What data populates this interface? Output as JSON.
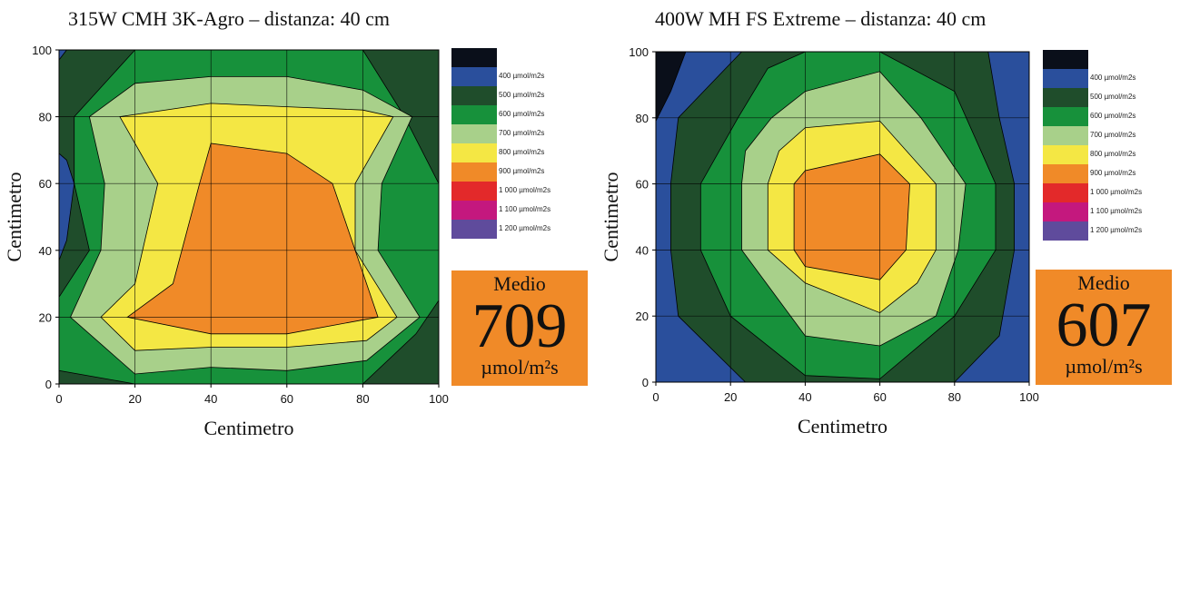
{
  "chart_data": [
    {
      "type": "heatmap",
      "title": "315W CMH 3K-Agro – distanza: 40 cm",
      "xlabel": "Centimetro",
      "ylabel": "Centimetro",
      "xlim": [
        0,
        100
      ],
      "ylim": [
        0,
        100
      ],
      "xticks": [
        "0",
        "20",
        "40",
        "60",
        "80",
        "100"
      ],
      "yticks": [
        "0",
        "20",
        "40",
        "60",
        "80",
        "100"
      ],
      "grid": true,
      "legend_placement": "right",
      "average": {
        "label": "Medio",
        "value": "709",
        "unit": "µmol/m²s"
      },
      "levels": [
        {
          "label": "",
          "color": "#0a0f1a"
        },
        {
          "label": "400 µmol/m2s",
          "color": "#2a4f9c"
        },
        {
          "label": "500 µmol/m2s",
          "color": "#1f4d2b"
        },
        {
          "label": "600 µmol/m2s",
          "color": "#17913b"
        },
        {
          "label": "700 µmol/m2s",
          "color": "#a8d08a"
        },
        {
          "label": "800 µmol/m2s",
          "color": "#f4e744"
        },
        {
          "label": "900 µmol/m2s",
          "color": "#f08a28"
        },
        {
          "label": "1 000 µmol/m2s",
          "color": "#e3292a"
        },
        {
          "label": "1 100 µmol/m2s",
          "color": "#c4187e"
        },
        {
          "label": "1 200 µmol/m2s",
          "color": "#5f4b9c"
        }
      ],
      "regions": [
        {
          "level": 2,
          "points": [
            [
              0,
              0
            ],
            [
              100,
              0
            ],
            [
              100,
              100
            ],
            [
              0,
              100
            ]
          ]
        },
        {
          "level": 1,
          "points": [
            [
              0,
              69
            ],
            [
              2,
              67
            ],
            [
              4,
              60
            ],
            [
              2,
              43
            ],
            [
              0,
              37
            ]
          ]
        },
        {
          "level": 1,
          "points": [
            [
              0,
              97
            ],
            [
              2,
              100
            ],
            [
              0,
              100
            ]
          ]
        },
        {
          "level": 3,
          "points": [
            [
              0,
              26
            ],
            [
              8,
              40
            ],
            [
              4,
              60
            ],
            [
              4,
              80
            ],
            [
              20,
              100
            ],
            [
              60,
              100
            ],
            [
              80,
              100
            ],
            [
              91,
              80
            ],
            [
              100,
              60
            ],
            [
              100,
              25
            ],
            [
              94,
              15
            ],
            [
              80,
              0
            ],
            [
              20,
              0
            ],
            [
              0,
              4
            ]
          ]
        },
        {
          "level": 4,
          "points": [
            [
              3,
              20
            ],
            [
              11,
              40
            ],
            [
              12,
              60
            ],
            [
              8,
              80
            ],
            [
              20,
              90
            ],
            [
              40,
              92
            ],
            [
              60,
              92
            ],
            [
              80,
              88
            ],
            [
              93,
              80
            ],
            [
              85,
              60
            ],
            [
              84,
              40
            ],
            [
              95,
              20
            ],
            [
              81,
              7
            ],
            [
              60,
              4
            ],
            [
              40,
              5
            ],
            [
              20,
              3
            ]
          ]
        },
        {
          "level": 5,
          "points": [
            [
              11,
              20
            ],
            [
              20,
              30
            ],
            [
              26,
              60
            ],
            [
              16,
              80
            ],
            [
              40,
              84
            ],
            [
              60,
              83
            ],
            [
              80,
              82
            ],
            [
              88,
              80
            ],
            [
              78,
              60
            ],
            [
              78,
              40
            ],
            [
              89,
              20
            ],
            [
              81,
              13
            ],
            [
              60,
              11
            ],
            [
              40,
              11
            ],
            [
              20,
              10
            ]
          ]
        },
        {
          "level": 6,
          "points": [
            [
              18,
              20
            ],
            [
              30,
              30
            ],
            [
              37,
              60
            ],
            [
              40,
              72
            ],
            [
              60,
              69
            ],
            [
              72,
              60
            ],
            [
              78,
              40
            ],
            [
              84,
              20
            ],
            [
              60,
              15
            ],
            [
              40,
              15
            ]
          ]
        }
      ]
    },
    {
      "type": "heatmap",
      "title": "400W MH FS Extreme – distanza: 40 cm",
      "xlabel": "Centimetro",
      "ylabel": "Centimetro",
      "xlim": [
        0,
        100
      ],
      "ylim": [
        0,
        100
      ],
      "xticks": [
        "0",
        "20",
        "40",
        "60",
        "80",
        "100"
      ],
      "yticks": [
        "0",
        "20",
        "40",
        "60",
        "80",
        "100"
      ],
      "grid": true,
      "legend_placement": "right",
      "average": {
        "label": "Medio",
        "value": "607",
        "unit": "µmol/m²s"
      },
      "levels": [
        {
          "label": "",
          "color": "#0a0f1a"
        },
        {
          "label": "400 µmol/m2s",
          "color": "#2a4f9c"
        },
        {
          "label": "500 µmol/m2s",
          "color": "#1f4d2b"
        },
        {
          "label": "600 µmol/m2s",
          "color": "#17913b"
        },
        {
          "label": "700 µmol/m2s",
          "color": "#a8d08a"
        },
        {
          "label": "800 µmol/m2s",
          "color": "#f4e744"
        },
        {
          "label": "900 µmol/m2s",
          "color": "#f08a28"
        },
        {
          "label": "1 000 µmol/m2s",
          "color": "#e3292a"
        },
        {
          "label": "1 100 µmol/m2s",
          "color": "#c4187e"
        },
        {
          "label": "1 200 µmol/m2s",
          "color": "#5f4b9c"
        }
      ],
      "regions": [
        {
          "level": 1,
          "points": [
            [
              0,
              0
            ],
            [
              100,
              0
            ],
            [
              100,
              100
            ],
            [
              0,
              100
            ]
          ]
        },
        {
          "level": 0,
          "points": [
            [
              0,
              79
            ],
            [
              4,
              88
            ],
            [
              8,
              100
            ],
            [
              0,
              100
            ]
          ]
        },
        {
          "level": 2,
          "points": [
            [
              6,
              80
            ],
            [
              4,
              60
            ],
            [
              4,
              40
            ],
            [
              6,
              20
            ],
            [
              24,
              0
            ],
            [
              40,
              0
            ],
            [
              60,
              0
            ],
            [
              80,
              0
            ],
            [
              92,
              14
            ],
            [
              96,
              40
            ],
            [
              96,
              60
            ],
            [
              92,
              80
            ],
            [
              89,
              100
            ],
            [
              60,
              100
            ],
            [
              40,
              100
            ],
            [
              23,
              100
            ]
          ]
        },
        {
          "level": 3,
          "points": [
            [
              22,
              80
            ],
            [
              12,
              60
            ],
            [
              12,
              40
            ],
            [
              20,
              20
            ],
            [
              40,
              2
            ],
            [
              60,
              1
            ],
            [
              80,
              20
            ],
            [
              91,
              40
            ],
            [
              91,
              60
            ],
            [
              80,
              88
            ],
            [
              60,
              100
            ],
            [
              40,
              100
            ],
            [
              30,
              95
            ]
          ]
        },
        {
          "level": 4,
          "points": [
            [
              24,
              70
            ],
            [
              23,
              60
            ],
            [
              23,
              40
            ],
            [
              40,
              14
            ],
            [
              60,
              11
            ],
            [
              75,
              20
            ],
            [
              81,
              40
            ],
            [
              83,
              60
            ],
            [
              71,
              80
            ],
            [
              60,
              94
            ],
            [
              40,
              88
            ],
            [
              31,
              80
            ]
          ]
        },
        {
          "level": 5,
          "points": [
            [
              30,
              60
            ],
            [
              30,
              40
            ],
            [
              40,
              30
            ],
            [
              60,
              21
            ],
            [
              70,
              30
            ],
            [
              75,
              40
            ],
            [
              75,
              60
            ],
            [
              60,
              79
            ],
            [
              40,
              77
            ],
            [
              33,
              70
            ]
          ]
        },
        {
          "level": 6,
          "points": [
            [
              37,
              60
            ],
            [
              37,
              40
            ],
            [
              40,
              35
            ],
            [
              60,
              31
            ],
            [
              67,
              40
            ],
            [
              68,
              60
            ],
            [
              60,
              69
            ],
            [
              40,
              64
            ]
          ]
        }
      ]
    }
  ]
}
